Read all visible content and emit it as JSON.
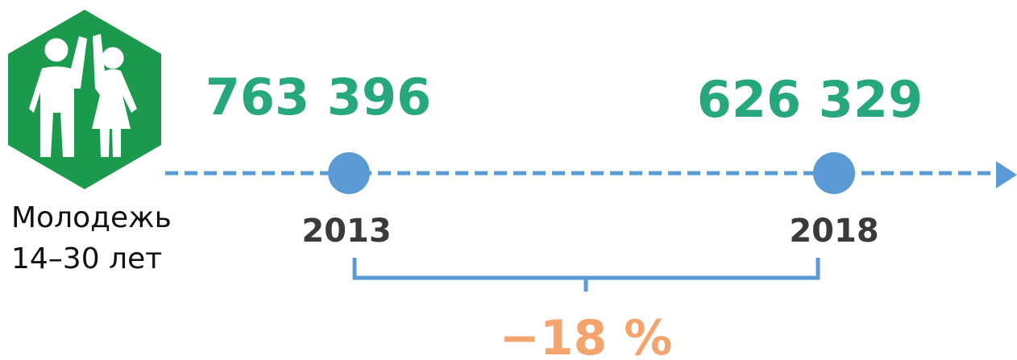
{
  "label": {
    "lines": [
      "Молодежь",
      "14–30 лет"
    ]
  },
  "points": [
    {
      "value": "763 396",
      "year": "2013"
    },
    {
      "value": "626 329",
      "year": "2018"
    }
  ],
  "change": "−18 %"
}
